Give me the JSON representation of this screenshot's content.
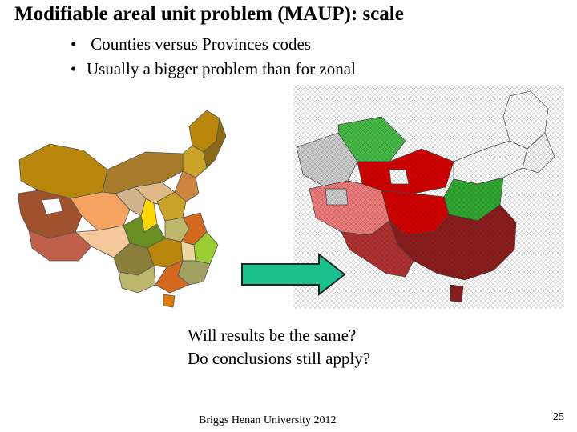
{
  "slide": {
    "title": "Modifiable areal unit problem (MAUP): scale",
    "bullets": [
      {
        "marker": "•",
        "text": " Counties versus Provinces codes"
      },
      {
        "marker": "•",
        "text": "Usually a bigger problem than for zonal"
      }
    ],
    "questions": [
      "Will results be the same?",
      "Do conclusions still apply?"
    ],
    "footer": "Briggs Henan University 2012",
    "page_number": "25"
  },
  "colors": {
    "arrow_fill": "#19c18f",
    "arrow_stroke": "#222222",
    "province_palette": [
      "#b8860b",
      "#c9a227",
      "#8b6914",
      "#a0522d",
      "#d2b48c",
      "#cd853f",
      "#9acd32",
      "#6b8e23",
      "#deb887",
      "#f4a460",
      "#d2691e",
      "#bdb76b"
    ],
    "county_red": "#d40000",
    "county_pink": "#ee7a7a",
    "county_green": "#44bb44",
    "county_darkred": "#8b1a1a",
    "county_gray": "#cccccc"
  },
  "images": {
    "left_map": "China provinces map (province-level units, multicolored)",
    "right_map": "China counties map (county-level units, red/green/gray)"
  }
}
